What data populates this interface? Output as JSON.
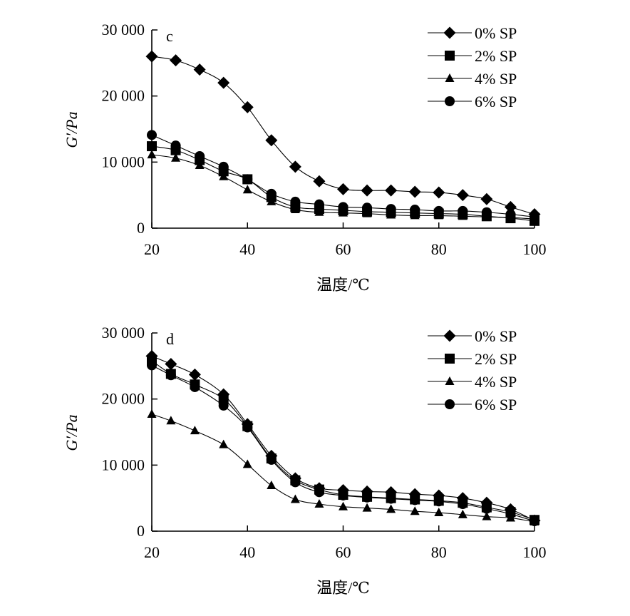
{
  "chart_data": [
    {
      "type": "line",
      "panel_label": "c",
      "xlabel": "温度/℃",
      "ylabel": "G′/Pa",
      "xlim": [
        20,
        100
      ],
      "ylim": [
        0,
        30000
      ],
      "xticks": [
        20,
        40,
        60,
        80,
        100
      ],
      "yticks": [
        0,
        10000,
        20000,
        30000
      ],
      "xtick_labels": [
        "20",
        "40",
        "60",
        "80",
        "100"
      ],
      "ytick_labels": [
        "0",
        "10 000",
        "20 000",
        "30 000"
      ],
      "legend_position": "top-right",
      "grid": false,
      "series": [
        {
          "name": "0% SP",
          "marker": "diamond",
          "x": [
            20,
            25,
            30,
            35,
            40,
            45,
            50,
            55,
            60,
            65,
            70,
            75,
            80,
            85,
            90,
            95,
            100
          ],
          "values": [
            26000,
            25400,
            24000,
            22000,
            18300,
            13300,
            9300,
            7100,
            5900,
            5700,
            5700,
            5500,
            5400,
            5000,
            4400,
            3200,
            2100
          ]
        },
        {
          "name": "2% SP",
          "marker": "square",
          "x": [
            20,
            25,
            30,
            35,
            40,
            45,
            50,
            55,
            60,
            65,
            70,
            75,
            80,
            85,
            90,
            95,
            100
          ],
          "values": [
            12400,
            11800,
            10300,
            8600,
            7400,
            4700,
            3200,
            2900,
            2700,
            2500,
            2400,
            2300,
            2200,
            2100,
            1800,
            1500,
            1100
          ]
        },
        {
          "name": "4% SP",
          "marker": "triangle",
          "x": [
            20,
            25,
            30,
            35,
            40,
            45,
            50,
            55,
            60,
            65,
            70,
            75,
            80,
            85,
            90,
            95,
            100
          ],
          "values": [
            11100,
            10600,
            9500,
            7800,
            5800,
            4000,
            2800,
            2400,
            2300,
            2200,
            2000,
            1900,
            1900,
            1800,
            1700,
            1600,
            1400
          ]
        },
        {
          "name": "6% SP",
          "marker": "circle",
          "x": [
            20,
            25,
            30,
            35,
            40,
            45,
            50,
            55,
            60,
            65,
            70,
            75,
            80,
            85,
            90,
            95,
            100
          ],
          "values": [
            14100,
            12500,
            10900,
            9300,
            7400,
            5200,
            4000,
            3600,
            3200,
            3100,
            2900,
            2800,
            2600,
            2600,
            2400,
            2100,
            1700
          ]
        }
      ]
    },
    {
      "type": "line",
      "panel_label": "d",
      "xlabel": "温度/℃",
      "ylabel": "G′/Pa",
      "xlim": [
        20,
        100
      ],
      "ylim": [
        0,
        30000
      ],
      "xticks": [
        20,
        40,
        60,
        80,
        100
      ],
      "yticks": [
        0,
        10000,
        20000,
        30000
      ],
      "xtick_labels": [
        "20",
        "40",
        "60",
        "80",
        "100"
      ],
      "ytick_labels": [
        "0",
        "10 000",
        "20 000",
        "30 000"
      ],
      "legend_position": "top-right",
      "grid": false,
      "series": [
        {
          "name": "0% SP",
          "marker": "diamond",
          "x": [
            20,
            24,
            29,
            35,
            40,
            45,
            50,
            55,
            60,
            65,
            70,
            75,
            80,
            85,
            90,
            95,
            100
          ],
          "values": [
            26500,
            25300,
            23700,
            20700,
            16200,
            11400,
            8000,
            6500,
            6200,
            6000,
            5900,
            5600,
            5400,
            5000,
            4300,
            3300,
            1600
          ]
        },
        {
          "name": "2% SP",
          "marker": "square",
          "x": [
            20,
            24,
            29,
            35,
            40,
            45,
            50,
            55,
            60,
            65,
            70,
            75,
            80,
            85,
            90,
            95,
            100
          ],
          "values": [
            25800,
            23800,
            22200,
            20000,
            15900,
            11000,
            7700,
            6300,
            5500,
            5200,
            5000,
            4800,
            4600,
            4300,
            3600,
            2900,
            1700
          ]
        },
        {
          "name": "4% SP",
          "marker": "triangle",
          "x": [
            20,
            24,
            29,
            35,
            40,
            45,
            50,
            55,
            60,
            65,
            70,
            75,
            80,
            85,
            90,
            95,
            100
          ],
          "values": [
            17700,
            16700,
            15200,
            13100,
            10100,
            6900,
            4800,
            4100,
            3700,
            3500,
            3300,
            3000,
            2800,
            2500,
            2200,
            2000,
            1400
          ]
        },
        {
          "name": "6% SP",
          "marker": "circle",
          "x": [
            20,
            24,
            29,
            35,
            40,
            45,
            50,
            55,
            60,
            65,
            70,
            75,
            80,
            85,
            90,
            95,
            100
          ],
          "values": [
            25100,
            23600,
            21800,
            19000,
            15700,
            10800,
            7400,
            5900,
            5400,
            5100,
            4900,
            4700,
            4500,
            4100,
            3400,
            2600,
            1500
          ]
        }
      ]
    }
  ]
}
